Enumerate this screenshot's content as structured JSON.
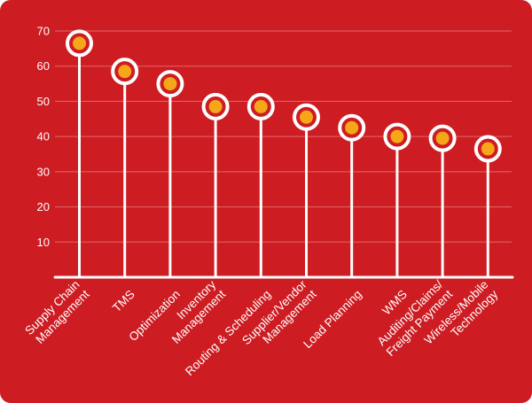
{
  "chart_data": {
    "type": "lollipop",
    "title": "",
    "xlabel": "",
    "ylabel": "",
    "ylim": [
      0,
      70
    ],
    "yticks": [
      10,
      20,
      30,
      40,
      50,
      60,
      70
    ],
    "grid": true,
    "categories": [
      [
        "Supply Chain",
        "Management"
      ],
      [
        "TMS"
      ],
      [
        "Optimization"
      ],
      [
        "Inventory",
        "Management"
      ],
      [
        "Routing & Scheduling"
      ],
      [
        "Supplier/Vendor",
        "Management"
      ],
      [
        "Load Planning"
      ],
      [
        "WMS"
      ],
      [
        "Auditing/Claims/",
        "Freight Payment"
      ],
      [
        "Wireless/Mobile",
        "Technology"
      ]
    ],
    "values": [
      66.5,
      58.5,
      55,
      48.5,
      48.5,
      45.5,
      42.5,
      40,
      39.5,
      36.5
    ]
  },
  "colors": {
    "background": "#cd1c22",
    "foreground": "#ffffff",
    "grid": "#e2676a",
    "marker_fill": "#f6a619"
  }
}
